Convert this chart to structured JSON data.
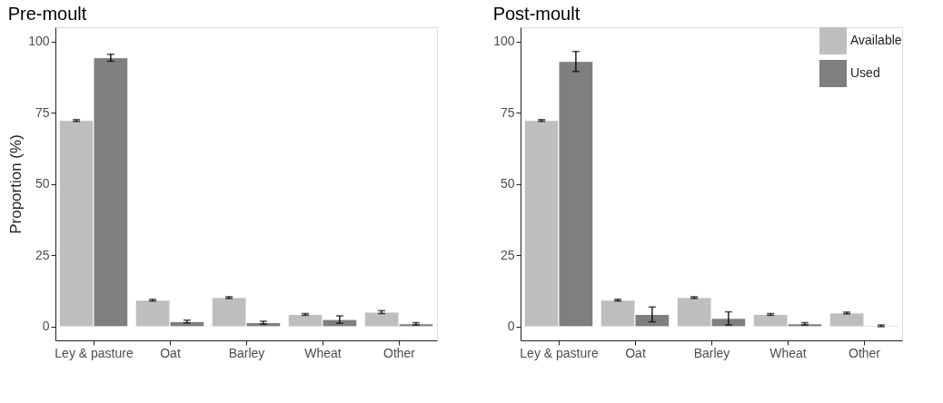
{
  "chart_data": [
    {
      "type": "bar",
      "title": "Pre-moult",
      "ylabel": "Proportion (%)",
      "categories": [
        "Ley & pasture",
        "Oat",
        "Barley",
        "Wheat",
        "Other"
      ],
      "ylim": [
        -4.8,
        105
      ],
      "yticks": [
        0,
        25,
        50,
        75,
        100
      ],
      "grid": false,
      "legend": false,
      "series": [
        {
          "color": "#bebebe",
          "values": [
            72.3,
            9.3,
            10.2,
            4.3,
            5.1
          ],
          "errors": [
            0.3,
            0.3,
            0.3,
            0.3,
            0.5
          ]
        },
        {
          "color": "#7f7f7f",
          "values": [
            94.3,
            1.8,
            1.4,
            2.5,
            1.0
          ],
          "errors": [
            1.2,
            0.5,
            0.5,
            1.3,
            0.4
          ]
        }
      ]
    },
    {
      "type": "bar",
      "title": "Post-moult",
      "categories": [
        "Ley & pasture",
        "Oat",
        "Barley",
        "Wheat",
        "Other"
      ],
      "ylim": [
        -4.8,
        105
      ],
      "yticks": [
        0,
        25,
        50,
        75,
        100
      ],
      "grid": false,
      "legend": "top right",
      "series": [
        {
          "name": "Available",
          "color": "#bebebe",
          "values": [
            72.3,
            9.3,
            10.2,
            4.3,
            4.8
          ],
          "errors": [
            0.3,
            0.3,
            0.3,
            0.3,
            0.3
          ]
        },
        {
          "name": "Used",
          "color": "#7f7f7f",
          "values": [
            93.0,
            4.3,
            2.9,
            1.0,
            0.3
          ],
          "errors": [
            3.5,
            2.6,
            2.3,
            0.4,
            0.3
          ]
        }
      ]
    }
  ]
}
